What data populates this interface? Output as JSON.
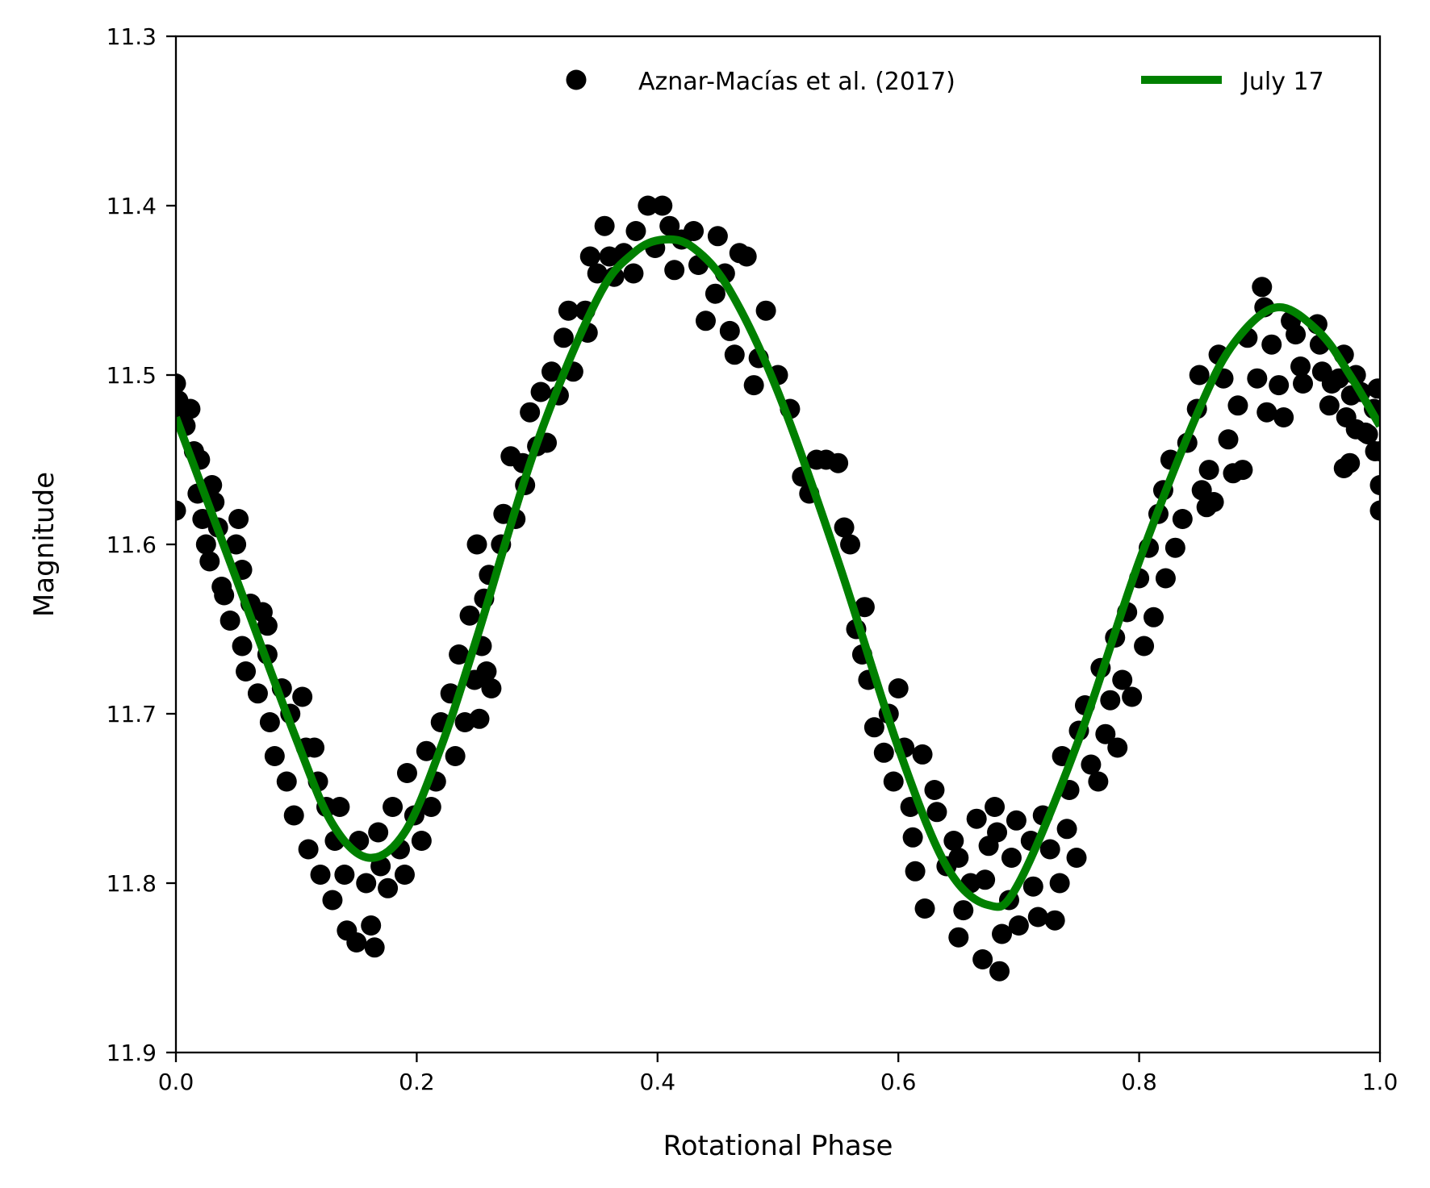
{
  "chart_data": {
    "type": "scatter",
    "xlabel": "Rotational Phase",
    "ylabel": "Magnitude",
    "xlim": [
      0.0,
      1.0
    ],
    "ylim": [
      11.9,
      11.3
    ],
    "y_inverted": true,
    "grid": false,
    "legend_placement": "top-right",
    "xticks": [
      "0.0",
      "0.2",
      "0.4",
      "0.6",
      "0.8",
      "1.0"
    ],
    "yticks": [
      "11.3",
      "11.4",
      "11.5",
      "11.6",
      "11.7",
      "11.8",
      "11.9"
    ],
    "series": [
      {
        "name": "Aznar-Macías et al. (2017)",
        "kind": "scatter",
        "color": "#000000",
        "points": [
          [
            0.0,
            11.505
          ],
          [
            0.002,
            11.515
          ],
          [
            0.005,
            11.525
          ],
          [
            0.008,
            11.53
          ],
          [
            0.012,
            11.52
          ],
          [
            0.0,
            11.58
          ],
          [
            0.015,
            11.545
          ],
          [
            0.018,
            11.57
          ],
          [
            0.02,
            11.55
          ],
          [
            0.022,
            11.585
          ],
          [
            0.025,
            11.6
          ],
          [
            0.028,
            11.61
          ],
          [
            0.03,
            11.565
          ],
          [
            0.032,
            11.575
          ],
          [
            0.035,
            11.59
          ],
          [
            0.038,
            11.625
          ],
          [
            0.04,
            11.63
          ],
          [
            0.045,
            11.645
          ],
          [
            0.05,
            11.6
          ],
          [
            0.052,
            11.585
          ],
          [
            0.055,
            11.615
          ],
          [
            0.055,
            11.66
          ],
          [
            0.058,
            11.675
          ],
          [
            0.062,
            11.635
          ],
          [
            0.068,
            11.688
          ],
          [
            0.072,
            11.64
          ],
          [
            0.076,
            11.648
          ],
          [
            0.076,
            11.665
          ],
          [
            0.078,
            11.705
          ],
          [
            0.082,
            11.725
          ],
          [
            0.088,
            11.685
          ],
          [
            0.092,
            11.74
          ],
          [
            0.095,
            11.7
          ],
          [
            0.098,
            11.76
          ],
          [
            0.105,
            11.69
          ],
          [
            0.108,
            11.72
          ],
          [
            0.11,
            11.78
          ],
          [
            0.115,
            11.72
          ],
          [
            0.118,
            11.74
          ],
          [
            0.12,
            11.795
          ],
          [
            0.125,
            11.755
          ],
          [
            0.13,
            11.81
          ],
          [
            0.132,
            11.775
          ],
          [
            0.136,
            11.755
          ],
          [
            0.14,
            11.795
          ],
          [
            0.142,
            11.828
          ],
          [
            0.15,
            11.835
          ],
          [
            0.152,
            11.775
          ],
          [
            0.158,
            11.8
          ],
          [
            0.162,
            11.825
          ],
          [
            0.165,
            11.838
          ],
          [
            0.168,
            11.77
          ],
          [
            0.17,
            11.79
          ],
          [
            0.176,
            11.803
          ],
          [
            0.18,
            11.755
          ],
          [
            0.186,
            11.78
          ],
          [
            0.19,
            11.795
          ],
          [
            0.192,
            11.735
          ],
          [
            0.198,
            11.76
          ],
          [
            0.204,
            11.775
          ],
          [
            0.208,
            11.722
          ],
          [
            0.212,
            11.755
          ],
          [
            0.216,
            11.74
          ],
          [
            0.22,
            11.705
          ],
          [
            0.228,
            11.688
          ],
          [
            0.232,
            11.725
          ],
          [
            0.235,
            11.665
          ],
          [
            0.24,
            11.705
          ],
          [
            0.244,
            11.642
          ],
          [
            0.248,
            11.68
          ],
          [
            0.25,
            11.6
          ],
          [
            0.252,
            11.703
          ],
          [
            0.254,
            11.66
          ],
          [
            0.256,
            11.632
          ],
          [
            0.258,
            11.675
          ],
          [
            0.26,
            11.618
          ],
          [
            0.262,
            11.685
          ],
          [
            0.27,
            11.6
          ],
          [
            0.272,
            11.582
          ],
          [
            0.278,
            11.548
          ],
          [
            0.282,
            11.585
          ],
          [
            0.288,
            11.552
          ],
          [
            0.29,
            11.565
          ],
          [
            0.294,
            11.522
          ],
          [
            0.3,
            11.542
          ],
          [
            0.303,
            11.51
          ],
          [
            0.308,
            11.54
          ],
          [
            0.312,
            11.498
          ],
          [
            0.318,
            11.512
          ],
          [
            0.322,
            11.478
          ],
          [
            0.326,
            11.462
          ],
          [
            0.33,
            11.498
          ],
          [
            0.34,
            11.462
          ],
          [
            0.342,
            11.475
          ],
          [
            0.344,
            11.43
          ],
          [
            0.35,
            11.44
          ],
          [
            0.356,
            11.412
          ],
          [
            0.36,
            11.43
          ],
          [
            0.364,
            11.442
          ],
          [
            0.372,
            11.428
          ],
          [
            0.38,
            11.44
          ],
          [
            0.382,
            11.415
          ],
          [
            0.392,
            11.4
          ],
          [
            0.398,
            11.425
          ],
          [
            0.404,
            11.4
          ],
          [
            0.41,
            11.412
          ],
          [
            0.414,
            11.438
          ],
          [
            0.42,
            11.42
          ],
          [
            0.43,
            11.415
          ],
          [
            0.434,
            11.435
          ],
          [
            0.44,
            11.468
          ],
          [
            0.448,
            11.452
          ],
          [
            0.45,
            11.418
          ],
          [
            0.456,
            11.44
          ],
          [
            0.46,
            11.474
          ],
          [
            0.464,
            11.488
          ],
          [
            0.468,
            11.428
          ],
          [
            0.474,
            11.43
          ],
          [
            0.48,
            11.506
          ],
          [
            0.484,
            11.49
          ],
          [
            0.49,
            11.462
          ],
          [
            0.5,
            11.5
          ],
          [
            0.51,
            11.52
          ],
          [
            0.52,
            11.56
          ],
          [
            0.526,
            11.57
          ],
          [
            0.532,
            11.55
          ],
          [
            0.54,
            11.55
          ],
          [
            0.55,
            11.552
          ],
          [
            0.555,
            11.59
          ],
          [
            0.56,
            11.6
          ],
          [
            0.565,
            11.65
          ],
          [
            0.572,
            11.637
          ],
          [
            0.57,
            11.665
          ],
          [
            0.575,
            11.68
          ],
          [
            0.58,
            11.708
          ],
          [
            0.588,
            11.723
          ],
          [
            0.592,
            11.7
          ],
          [
            0.596,
            11.74
          ],
          [
            0.6,
            11.685
          ],
          [
            0.605,
            11.72
          ],
          [
            0.61,
            11.755
          ],
          [
            0.612,
            11.773
          ],
          [
            0.614,
            11.793
          ],
          [
            0.62,
            11.724
          ],
          [
            0.622,
            11.815
          ],
          [
            0.63,
            11.745
          ],
          [
            0.632,
            11.758
          ],
          [
            0.64,
            11.79
          ],
          [
            0.646,
            11.775
          ],
          [
            0.65,
            11.785
          ],
          [
            0.65,
            11.832
          ],
          [
            0.654,
            11.816
          ],
          [
            0.66,
            11.8
          ],
          [
            0.665,
            11.762
          ],
          [
            0.67,
            11.845
          ],
          [
            0.672,
            11.798
          ],
          [
            0.675,
            11.778
          ],
          [
            0.68,
            11.755
          ],
          [
            0.682,
            11.77
          ],
          [
            0.684,
            11.852
          ],
          [
            0.686,
            11.83
          ],
          [
            0.692,
            11.81
          ],
          [
            0.694,
            11.785
          ],
          [
            0.698,
            11.763
          ],
          [
            0.7,
            11.825
          ],
          [
            0.71,
            11.775
          ],
          [
            0.712,
            11.802
          ],
          [
            0.716,
            11.82
          ],
          [
            0.72,
            11.76
          ],
          [
            0.726,
            11.78
          ],
          [
            0.73,
            11.822
          ],
          [
            0.734,
            11.8
          ],
          [
            0.736,
            11.725
          ],
          [
            0.74,
            11.768
          ],
          [
            0.742,
            11.745
          ],
          [
            0.748,
            11.785
          ],
          [
            0.75,
            11.71
          ],
          [
            0.755,
            11.695
          ],
          [
            0.76,
            11.73
          ],
          [
            0.766,
            11.74
          ],
          [
            0.768,
            11.673
          ],
          [
            0.772,
            11.712
          ],
          [
            0.776,
            11.692
          ],
          [
            0.78,
            11.655
          ],
          [
            0.782,
            11.72
          ],
          [
            0.786,
            11.68
          ],
          [
            0.79,
            11.64
          ],
          [
            0.794,
            11.69
          ],
          [
            0.8,
            11.62
          ],
          [
            0.804,
            11.66
          ],
          [
            0.808,
            11.602
          ],
          [
            0.812,
            11.643
          ],
          [
            0.816,
            11.582
          ],
          [
            0.82,
            11.568
          ],
          [
            0.822,
            11.62
          ],
          [
            0.826,
            11.55
          ],
          [
            0.83,
            11.602
          ],
          [
            0.836,
            11.585
          ],
          [
            0.84,
            11.54
          ],
          [
            0.848,
            11.52
          ],
          [
            0.85,
            11.5
          ],
          [
            0.852,
            11.568
          ],
          [
            0.856,
            11.578
          ],
          [
            0.858,
            11.556
          ],
          [
            0.862,
            11.575
          ],
          [
            0.866,
            11.488
          ],
          [
            0.87,
            11.502
          ],
          [
            0.874,
            11.538
          ],
          [
            0.878,
            11.558
          ],
          [
            0.882,
            11.518
          ],
          [
            0.886,
            11.556
          ],
          [
            0.89,
            11.478
          ],
          [
            0.898,
            11.502
          ],
          [
            0.902,
            11.448
          ],
          [
            0.904,
            11.46
          ],
          [
            0.906,
            11.522
          ],
          [
            0.91,
            11.482
          ],
          [
            0.916,
            11.506
          ],
          [
            0.92,
            11.525
          ],
          [
            0.926,
            11.468
          ],
          [
            0.93,
            11.476
          ],
          [
            0.934,
            11.495
          ],
          [
            0.936,
            11.505
          ],
          [
            0.948,
            11.47
          ],
          [
            0.95,
            11.482
          ],
          [
            0.952,
            11.498
          ],
          [
            0.958,
            11.518
          ],
          [
            0.96,
            11.505
          ],
          [
            0.966,
            11.502
          ],
          [
            0.97,
            11.488
          ],
          [
            0.97,
            11.555
          ],
          [
            0.972,
            11.525
          ],
          [
            0.975,
            11.552
          ],
          [
            0.976,
            11.512
          ],
          [
            0.98,
            11.5
          ],
          [
            0.98,
            11.532
          ],
          [
            0.984,
            11.51
          ],
          [
            0.988,
            11.534
          ],
          [
            0.99,
            11.535
          ],
          [
            0.995,
            11.52
          ],
          [
            0.996,
            11.545
          ],
          [
            0.998,
            11.508
          ],
          [
            1.0,
            11.545
          ],
          [
            1.0,
            11.565
          ],
          [
            1.0,
            11.58
          ]
        ]
      },
      {
        "name": "July 17",
        "kind": "line",
        "color": "#008000",
        "points": [
          [
            0.0,
            11.525
          ],
          [
            0.05,
            11.62
          ],
          [
            0.1,
            11.715
          ],
          [
            0.13,
            11.765
          ],
          [
            0.16,
            11.785
          ],
          [
            0.19,
            11.77
          ],
          [
            0.22,
            11.72
          ],
          [
            0.25,
            11.655
          ],
          [
            0.3,
            11.54
          ],
          [
            0.35,
            11.455
          ],
          [
            0.38,
            11.428
          ],
          [
            0.405,
            11.42
          ],
          [
            0.43,
            11.425
          ],
          [
            0.46,
            11.45
          ],
          [
            0.5,
            11.51
          ],
          [
            0.55,
            11.61
          ],
          [
            0.6,
            11.72
          ],
          [
            0.64,
            11.79
          ],
          [
            0.675,
            11.813
          ],
          [
            0.7,
            11.8
          ],
          [
            0.75,
            11.715
          ],
          [
            0.8,
            11.61
          ],
          [
            0.85,
            11.52
          ],
          [
            0.88,
            11.48
          ],
          [
            0.915,
            11.46
          ],
          [
            0.95,
            11.475
          ],
          [
            0.975,
            11.5
          ],
          [
            1.0,
            11.53
          ]
        ]
      }
    ]
  }
}
